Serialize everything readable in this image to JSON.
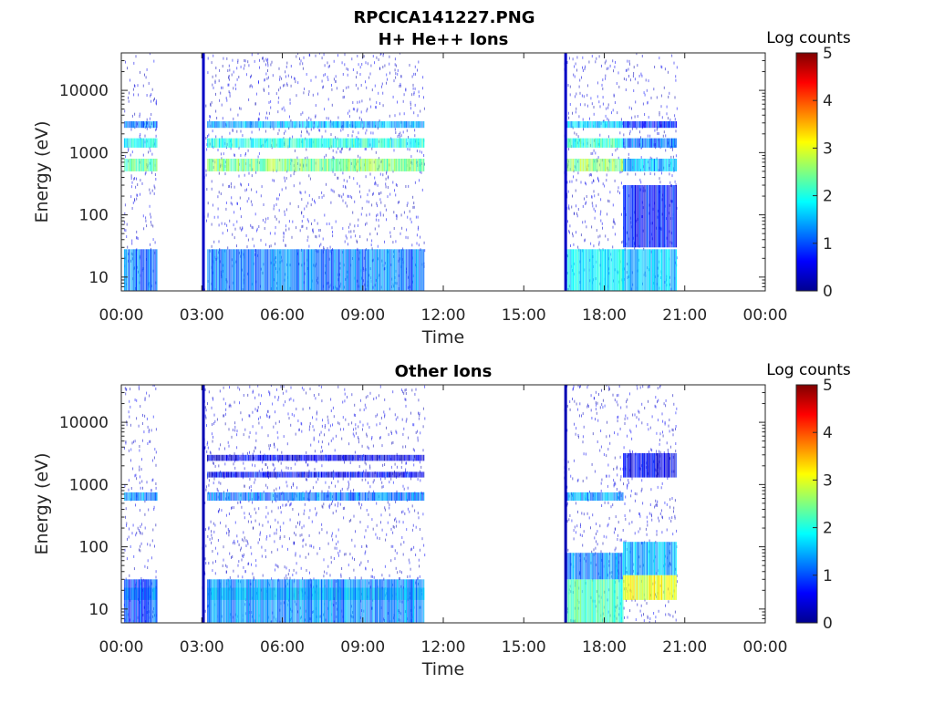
{
  "figure": {
    "title_line1": "RPCICA141227.PNG",
    "colorscale": [
      "#00008f",
      "#0000ff",
      "#0080ff",
      "#00ffff",
      "#80ff80",
      "#ffff00",
      "#ff8000",
      "#ff0000",
      "#800000"
    ]
  },
  "chart_data": [
    {
      "type": "heatmap",
      "title": "H+ He++ Ions",
      "xlabel": "Time",
      "ylabel": "Energy (eV)",
      "x_ticks": [
        "00:00",
        "03:00",
        "06:00",
        "09:00",
        "12:00",
        "15:00",
        "18:00",
        "21:00",
        "00:00"
      ],
      "xlim_hours": [
        0,
        24
      ],
      "y_scale": "log",
      "ylim_eV": [
        6,
        40000
      ],
      "y_ticks": [
        {
          "value": 10,
          "label": "10"
        },
        {
          "value": 100,
          "label": "100"
        },
        {
          "value": 1000,
          "label": "1000"
        },
        {
          "value": 10000,
          "label": "10000"
        }
      ],
      "colorbar": {
        "label": "Log counts",
        "range": [
          0,
          5
        ],
        "ticks": [
          "0",
          "1",
          "2",
          "3",
          "4",
          "5"
        ]
      },
      "data_coverage_hours": [
        [
          0.1,
          1.3
        ],
        [
          3.0,
          11.3
        ],
        [
          16.5,
          20.7
        ]
      ],
      "bands": [
        {
          "t": [
            0.1,
            1.3
          ],
          "e": [
            500,
            800
          ],
          "level": 2.3
        },
        {
          "t": [
            0.1,
            1.3
          ],
          "e": [
            1200,
            1700
          ],
          "level": 1.8
        },
        {
          "t": [
            0.1,
            1.3
          ],
          "e": [
            2500,
            3200
          ],
          "level": 1.2
        },
        {
          "t": [
            0.1,
            1.3
          ],
          "e": [
            6,
            28
          ],
          "level": 1.2
        },
        {
          "t": [
            3.2,
            11.3
          ],
          "e": [
            500,
            800
          ],
          "level": 2.5
        },
        {
          "t": [
            3.2,
            11.3
          ],
          "e": [
            1200,
            1700
          ],
          "level": 2.0
        },
        {
          "t": [
            3.2,
            11.3
          ],
          "e": [
            2500,
            3200
          ],
          "level": 1.5
        },
        {
          "t": [
            3.2,
            11.3
          ],
          "e": [
            6,
            28
          ],
          "level": 1.2
        },
        {
          "t": [
            16.6,
            18.7
          ],
          "e": [
            500,
            800
          ],
          "level": 2.6
        },
        {
          "t": [
            16.6,
            18.7
          ],
          "e": [
            1200,
            1700
          ],
          "level": 2.1
        },
        {
          "t": [
            16.6,
            18.7
          ],
          "e": [
            2500,
            3200
          ],
          "level": 1.6
        },
        {
          "t": [
            16.6,
            18.7
          ],
          "e": [
            6,
            28
          ],
          "level": 1.8
        },
        {
          "t": [
            18.7,
            20.7
          ],
          "e": [
            500,
            800
          ],
          "level": 1.5
        },
        {
          "t": [
            18.7,
            20.7
          ],
          "e": [
            1200,
            1700
          ],
          "level": 1.2
        },
        {
          "t": [
            18.7,
            20.7
          ],
          "e": [
            2500,
            3200
          ],
          "level": 0.8
        },
        {
          "t": [
            18.7,
            20.7
          ],
          "e": [
            6,
            28
          ],
          "level": 1.5
        },
        {
          "t": [
            18.7,
            20.7
          ],
          "e": [
            30,
            300
          ],
          "level": 0.7
        }
      ],
      "spikes": [
        {
          "t": 3.05,
          "level": 0.3
        },
        {
          "t": 16.55,
          "level": 0.3
        }
      ]
    },
    {
      "type": "heatmap",
      "title": "Other Ions",
      "xlabel": "Time",
      "ylabel": "Energy (eV)",
      "x_ticks": [
        "00:00",
        "03:00",
        "06:00",
        "09:00",
        "12:00",
        "15:00",
        "18:00",
        "21:00",
        "00:00"
      ],
      "xlim_hours": [
        0,
        24
      ],
      "y_scale": "log",
      "ylim_eV": [
        6,
        40000
      ],
      "y_ticks": [
        {
          "value": 10,
          "label": "10"
        },
        {
          "value": 100,
          "label": "100"
        },
        {
          "value": 1000,
          "label": "1000"
        },
        {
          "value": 10000,
          "label": "10000"
        }
      ],
      "colorbar": {
        "label": "Log counts",
        "range": [
          0,
          5
        ],
        "ticks": [
          "0",
          "1",
          "2",
          "3",
          "4",
          "5"
        ]
      },
      "data_coverage_hours": [
        [
          0.1,
          1.3
        ],
        [
          3.0,
          11.3
        ],
        [
          16.5,
          20.7
        ]
      ],
      "bands": [
        {
          "t": [
            0.1,
            1.3
          ],
          "e": [
            550,
            750
          ],
          "level": 1.3
        },
        {
          "t": [
            0.1,
            1.3
          ],
          "e": [
            14,
            22
          ],
          "level": 1.7
        },
        {
          "t": [
            0.1,
            1.3
          ],
          "e": [
            6,
            30
          ],
          "level": 1.0
        },
        {
          "t": [
            3.2,
            11.3
          ],
          "e": [
            550,
            750
          ],
          "level": 1.2
        },
        {
          "t": [
            3.2,
            11.3
          ],
          "e": [
            1300,
            1600
          ],
          "level": 0.6
        },
        {
          "t": [
            3.2,
            11.3
          ],
          "e": [
            2400,
            3000
          ],
          "level": 0.5
        },
        {
          "t": [
            3.2,
            11.3
          ],
          "e": [
            14,
            22
          ],
          "level": 2.0
        },
        {
          "t": [
            3.2,
            11.3
          ],
          "e": [
            6,
            30
          ],
          "level": 1.3
        },
        {
          "t": [
            16.6,
            18.7
          ],
          "e": [
            550,
            750
          ],
          "level": 1.4
        },
        {
          "t": [
            16.6,
            18.7
          ],
          "e": [
            6,
            30
          ],
          "level": 2.2
        },
        {
          "t": [
            16.6,
            18.7
          ],
          "e": [
            30,
            80
          ],
          "level": 1.3
        },
        {
          "t": [
            18.7,
            20.7
          ],
          "e": [
            14,
            35
          ],
          "level": 3.0
        },
        {
          "t": [
            18.7,
            20.7
          ],
          "e": [
            35,
            120
          ],
          "level": 1.5
        },
        {
          "t": [
            18.7,
            20.7
          ],
          "e": [
            1300,
            3200
          ],
          "level": 0.5
        }
      ],
      "spikes": [
        {
          "t": 3.05,
          "level": 0.2
        },
        {
          "t": 16.55,
          "level": 0.2
        }
      ]
    }
  ]
}
